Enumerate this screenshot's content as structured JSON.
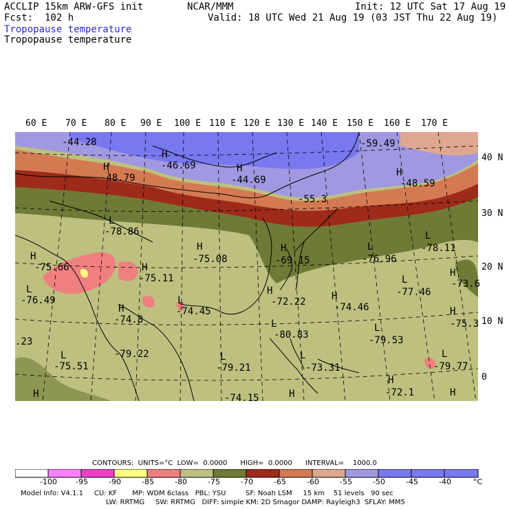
{
  "header": {
    "model": "ACCLIP 15km ARW-GFS init",
    "org": "NCAR/MMM",
    "init": "Init: 12 UTC Sat 17 Aug 19",
    "fcst": "Fcst:  102 h",
    "valid": "Valid: 18 UTC Wed 21 Aug 19 (03 JST Thu 22 Aug 19)",
    "field_title_1": "Tropopause temperature",
    "field_title_2": "Tropopause temperature"
  },
  "lon_labels": [
    "60 E",
    "70 E",
    "80 E",
    "90 E",
    "100 E",
    "110 E",
    "120 E",
    "130 E",
    "140 E",
    "150 E",
    "160 E",
    "170 E"
  ],
  "lat_labels": [
    "40 N",
    "30 N",
    "20 N",
    "10 N",
    "0"
  ],
  "markers": [
    {
      "t": "-44.28"
    },
    {
      "t": "H"
    },
    {
      "t": "-48.79"
    },
    {
      "t": "H"
    },
    {
      "t": "-46.69"
    },
    {
      "t": "H"
    },
    {
      "t": "-44.69"
    },
    {
      "t": "-59.49"
    },
    {
      "t": "H"
    },
    {
      "t": "-48.59"
    },
    {
      "t": "-55.3"
    },
    {
      "t": "L"
    },
    {
      "t": "-78.86"
    },
    {
      "t": "H"
    },
    {
      "t": "-75.08"
    },
    {
      "t": "H"
    },
    {
      "t": "-69.15"
    },
    {
      "t": "L"
    },
    {
      "t": "-76.96"
    },
    {
      "t": "L"
    },
    {
      "t": "-78.11"
    },
    {
      "t": "H"
    },
    {
      "t": "-75.66"
    },
    {
      "t": "H"
    },
    {
      "t": "-75.11"
    },
    {
      "t": "L"
    },
    {
      "t": "-76.49"
    },
    {
      "t": "H"
    },
    {
      "t": "-73.6"
    },
    {
      "t": "H"
    },
    {
      "t": "-72.22"
    },
    {
      "t": "H"
    },
    {
      "t": "-74.46"
    },
    {
      "t": "L"
    },
    {
      "t": "-77.46"
    },
    {
      "t": "H"
    },
    {
      "t": "-74.8"
    },
    {
      "t": "L"
    },
    {
      "t": "-74.45"
    },
    {
      "t": "L"
    },
    {
      "t": "-80.83"
    },
    {
      "t": "L"
    },
    {
      "t": "-79.53"
    },
    {
      "t": "H"
    },
    {
      "t": "-75.3"
    },
    {
      "t": "-79.22"
    },
    {
      "t": "L"
    },
    {
      "t": "-75.51"
    },
    {
      "t": ".23"
    },
    {
      "t": "L"
    },
    {
      "t": "-79.21"
    },
    {
      "t": "L"
    },
    {
      "t": "-73.31"
    },
    {
      "t": "L"
    },
    {
      "t": "-79.77"
    },
    {
      "t": "H"
    },
    {
      "t": "-72.1"
    },
    {
      "t": "-74.15"
    },
    {
      "t": "H"
    },
    {
      "t": "H"
    },
    {
      "t": "H"
    }
  ],
  "contours_line": "CONTOURS:  UNITS=°C  LOW=  0.0000      HIGH=  0.0000      INTERVAL=    1000.0",
  "legend": {
    "colors": [
      "#ffffff",
      "#ff80ff",
      "#f040c8",
      "#ffff80",
      "#f08080",
      "#bec080",
      "#6e7a36",
      "#9e2a1a",
      "#d47a52",
      "#dea890",
      "#a098e0",
      "#7878f0",
      "#7878f0",
      "#7878f0"
    ],
    "labels": [
      "-100",
      "-95",
      "-90",
      "-85",
      "-80",
      "-75",
      "-70",
      "-65",
      "-60",
      "-55",
      "-50",
      "-45",
      "-40",
      "°C"
    ]
  },
  "footer": {
    "line1": "Model Info: V4.1.1     CU: KF       MP: WDM 6class   PBL: YSU         SF: Noah LSM     15 km    51 levels   90 sec",
    "line2": "LW: RRTMG     SW: RRTMG   DIFF: simple KM: 2D Smagor DAMP: Rayleigh3  SFLAY: MM5"
  }
}
